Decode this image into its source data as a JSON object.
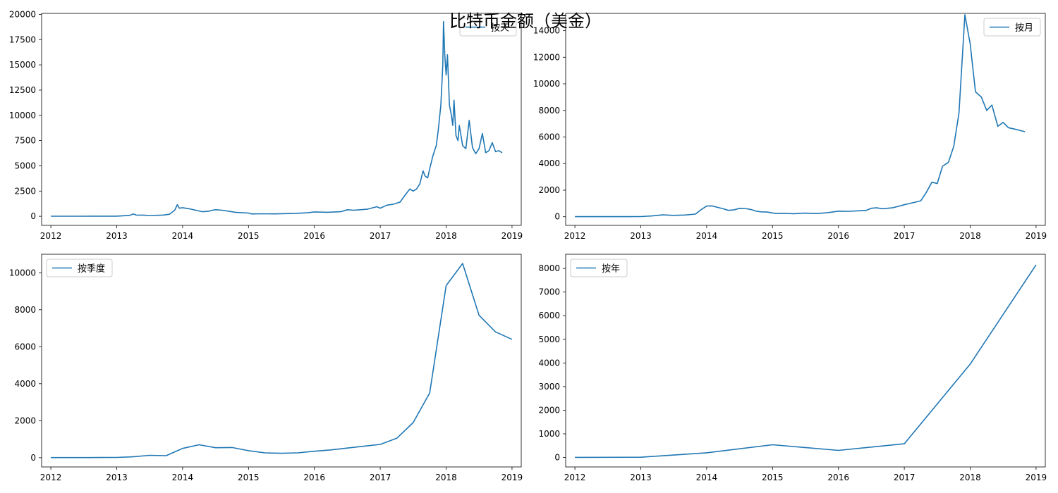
{
  "figure": {
    "title": "比特币金额（美金）"
  },
  "chart_data": [
    {
      "type": "line",
      "legend": "按天",
      "legend_position": "top-right",
      "xlim": [
        2011.86,
        2019.14
      ],
      "ylim": [
        -900,
        20100
      ],
      "x_ticks": [
        2012,
        2013,
        2014,
        2015,
        2016,
        2017,
        2018,
        2019
      ],
      "x_tick_labels": [
        "2012",
        "2013",
        "2014",
        "2015",
        "2016",
        "2017",
        "2018",
        "2019"
      ],
      "y_ticks": [
        0,
        2500,
        5000,
        7500,
        10000,
        12500,
        15000,
        17500,
        20000
      ],
      "y_tick_labels": [
        "0",
        "2500",
        "5000",
        "7500",
        "10000",
        "12500",
        "15000",
        "17500",
        "20000"
      ],
      "grid": false,
      "color": "#1f77b4",
      "x": [
        2012.0,
        2012.5,
        2013.0,
        2013.2,
        2013.25,
        2013.3,
        2013.4,
        2013.5,
        2013.7,
        2013.8,
        2013.88,
        2013.92,
        2013.95,
        2014.0,
        2014.1,
        2014.2,
        2014.3,
        2014.4,
        2014.45,
        2014.5,
        2014.6,
        2014.7,
        2014.8,
        2014.9,
        2015.0,
        2015.05,
        2015.2,
        2015.4,
        2015.5,
        2015.7,
        2015.9,
        2016.0,
        2016.2,
        2016.4,
        2016.5,
        2016.6,
        2016.8,
        2016.95,
        2017.0,
        2017.1,
        2017.2,
        2017.3,
        2017.4,
        2017.45,
        2017.5,
        2017.55,
        2017.6,
        2017.65,
        2017.68,
        2017.72,
        2017.75,
        2017.8,
        2017.85,
        2017.88,
        2017.92,
        2017.95,
        2017.96,
        2017.98,
        2018.0,
        2018.02,
        2018.05,
        2018.08,
        2018.1,
        2018.12,
        2018.15,
        2018.18,
        2018.2,
        2018.25,
        2018.3,
        2018.35,
        2018.4,
        2018.45,
        2018.5,
        2018.55,
        2018.6,
        2018.65,
        2018.7,
        2018.75,
        2018.8,
        2018.85
      ],
      "y": [
        5,
        6,
        13,
        90,
        230,
        110,
        120,
        80,
        120,
        200,
        600,
        1150,
        800,
        850,
        750,
        600,
        450,
        500,
        600,
        650,
        600,
        500,
        400,
        350,
        320,
        230,
        250,
        240,
        260,
        280,
        350,
        430,
        400,
        450,
        650,
        600,
        700,
        950,
        800,
        1100,
        1200,
        1400,
        2300,
        2700,
        2500,
        2700,
        3200,
        4500,
        4000,
        3800,
        4700,
        6000,
        7000,
        8500,
        11000,
        15000,
        19300,
        16000,
        14000,
        16000,
        11000,
        10000,
        9000,
        11500,
        8000,
        7500,
        9000,
        7000,
        6700,
        9500,
        6800,
        6200,
        6700,
        8200,
        6300,
        6500,
        7300,
        6400,
        6500,
        6300
      ]
    },
    {
      "type": "line",
      "legend": "按月",
      "legend_position": "top-right",
      "xlim": [
        2011.86,
        2019.14
      ],
      "ylim": [
        -650,
        15300
      ],
      "x_ticks": [
        2012,
        2013,
        2014,
        2015,
        2016,
        2017,
        2018,
        2019
      ],
      "x_tick_labels": [
        "2012",
        "2013",
        "2014",
        "2015",
        "2016",
        "2017",
        "2018",
        "2019"
      ],
      "y_ticks": [
        0,
        2000,
        4000,
        6000,
        8000,
        10000,
        12000,
        14000
      ],
      "y_tick_labels": [
        "0",
        "2000",
        "4000",
        "6000",
        "8000",
        "10000",
        "12000",
        "14000"
      ],
      "grid": false,
      "color": "#1f77b4",
      "x": [
        2012.0,
        2012.5,
        2013.0,
        2013.17,
        2013.33,
        2013.5,
        2013.67,
        2013.83,
        2013.92,
        2014.0,
        2014.08,
        2014.17,
        2014.25,
        2014.33,
        2014.42,
        2014.5,
        2014.58,
        2014.67,
        2014.75,
        2014.83,
        2014.92,
        2015.0,
        2015.08,
        2015.17,
        2015.25,
        2015.33,
        2015.5,
        2015.67,
        2015.83,
        2016.0,
        2016.17,
        2016.33,
        2016.42,
        2016.5,
        2016.58,
        2016.67,
        2016.83,
        2017.0,
        2017.08,
        2017.17,
        2017.25,
        2017.33,
        2017.42,
        2017.5,
        2017.58,
        2017.67,
        2017.75,
        2017.83,
        2017.92,
        2018.0,
        2018.08,
        2018.17,
        2018.25,
        2018.33,
        2018.42,
        2018.5,
        2018.58,
        2018.67,
        2018.75,
        2018.83
      ],
      "y": [
        5,
        6,
        15,
        60,
        140,
        100,
        130,
        200,
        550,
        800,
        820,
        700,
        600,
        480,
        520,
        630,
        620,
        550,
        420,
        370,
        350,
        280,
        240,
        260,
        240,
        230,
        270,
        240,
        300,
        420,
        410,
        450,
        480,
        640,
        670,
        600,
        680,
        900,
        1000,
        1100,
        1200,
        1800,
        2600,
        2500,
        3800,
        4100,
        5300,
        7800,
        15200,
        13000,
        9400,
        9000,
        8000,
        8400,
        6800,
        7100,
        6700,
        6600,
        6500,
        6400
      ]
    },
    {
      "type": "line",
      "legend": "按季度",
      "legend_position": "top-left",
      "xlim": [
        2011.86,
        2019.14
      ],
      "ylim": [
        -500,
        11000
      ],
      "x_ticks": [
        2012,
        2013,
        2014,
        2015,
        2016,
        2017,
        2018,
        2019
      ],
      "x_tick_labels": [
        "2012",
        "2013",
        "2014",
        "2015",
        "2016",
        "2017",
        "2018",
        "2019"
      ],
      "y_ticks": [
        0,
        2000,
        4000,
        6000,
        8000,
        10000
      ],
      "y_tick_labels": [
        "0",
        "2000",
        "4000",
        "6000",
        "8000",
        "10000"
      ],
      "grid": false,
      "color": "#1f77b4",
      "x": [
        2012.0,
        2012.25,
        2012.5,
        2012.75,
        2013.0,
        2013.25,
        2013.5,
        2013.75,
        2014.0,
        2014.25,
        2014.5,
        2014.75,
        2015.0,
        2015.25,
        2015.5,
        2015.75,
        2016.0,
        2016.25,
        2016.5,
        2016.75,
        2017.0,
        2017.25,
        2017.5,
        2017.75,
        2018.0,
        2018.25,
        2018.5,
        2018.75,
        2019.0
      ],
      "y": [
        5,
        5,
        7,
        10,
        15,
        50,
        130,
        110,
        500,
        700,
        540,
        550,
        380,
        260,
        240,
        260,
        350,
        420,
        520,
        620,
        720,
        1050,
        1900,
        3500,
        9300,
        10500,
        7700,
        6800,
        6400
      ]
    },
    {
      "type": "line",
      "legend": "按年",
      "legend_position": "top-left",
      "xlim": [
        2011.86,
        2019.14
      ],
      "ylim": [
        -400,
        8600
      ],
      "x_ticks": [
        2012,
        2013,
        2014,
        2015,
        2016,
        2017,
        2018,
        2019
      ],
      "x_tick_labels": [
        "2012",
        "2013",
        "2014",
        "2015",
        "2016",
        "2017",
        "2018",
        "2019"
      ],
      "y_ticks": [
        0,
        1000,
        2000,
        3000,
        4000,
        5000,
        6000,
        7000,
        8000
      ],
      "y_tick_labels": [
        "0",
        "1000",
        "2000",
        "3000",
        "4000",
        "5000",
        "6000",
        "7000",
        "8000"
      ],
      "grid": false,
      "color": "#1f77b4",
      "x": [
        2012,
        2013,
        2014,
        2015,
        2016,
        2017,
        2018,
        2019
      ],
      "y": [
        5,
        10,
        200,
        540,
        300,
        580,
        3950,
        8150
      ]
    }
  ]
}
